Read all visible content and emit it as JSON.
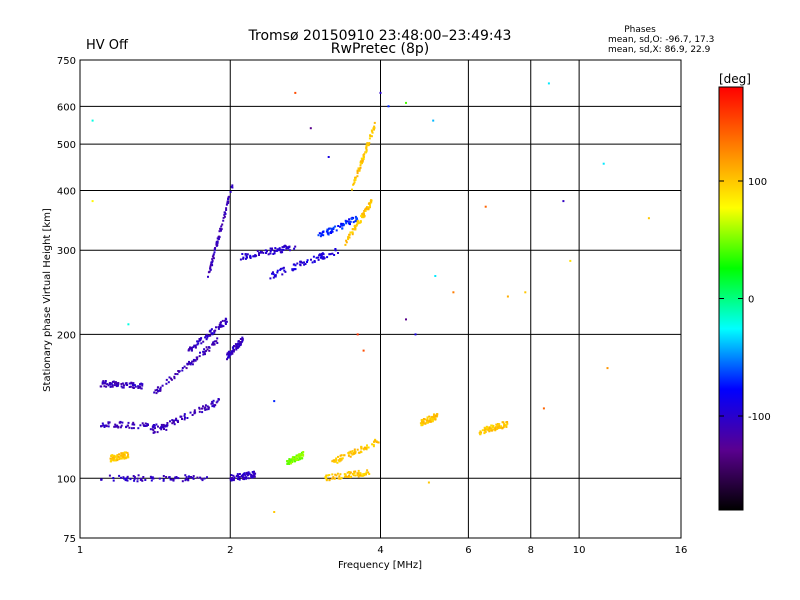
{
  "header": {
    "status": "HV Off",
    "status_color": "#d00000",
    "title": "Tromsø 20150910 23:48:00–23:49:43",
    "subtitle": "RwPretec (8p)"
  },
  "stats": {
    "heading": "Phases",
    "line_o": "mean, sd,O: -96.7, 17.3",
    "line_x": "mean, sd,X: 86.9, 22.9"
  },
  "colorbar": {
    "unit": "[deg]",
    "tick_labels": [
      "100",
      "0",
      "-100"
    ],
    "tick_values": [
      100,
      0,
      -100
    ],
    "range": [
      -180,
      180
    ],
    "colors": [
      "#000000",
      "#5a0090",
      "#0000ff",
      "#00ffff",
      "#00ff00",
      "#ffff00",
      "#ff8000",
      "#ff0000"
    ]
  },
  "chart_data": {
    "type": "scatter",
    "xlabel": "Frequency [MHz]",
    "ylabel": "Stationary phase Virtual Height [km]",
    "xscale": "log2",
    "yscale": "log",
    "xlim": [
      1,
      16
    ],
    "ylim": [
      75,
      750
    ],
    "x_ticks": [
      1,
      2,
      4,
      6,
      8,
      10,
      16
    ],
    "x_tick_labels": [
      "1",
      "2",
      "4",
      "6",
      "8",
      "10",
      "16"
    ],
    "y_ticks": [
      75,
      100,
      200,
      300,
      400,
      500,
      600,
      750
    ],
    "y_tick_labels": [
      "75",
      "100",
      "200",
      "300",
      "400",
      "500",
      "600",
      "750"
    ],
    "grid": true,
    "color_by": "phase [deg]",
    "series": [
      {
        "x": [
          1.1,
          1.8
        ],
        "y": [
          100,
          100
        ],
        "phase": -105
      },
      {
        "x": [
          1.1,
          1.5
        ],
        "y": [
          130,
          128
        ],
        "phase": -108
      },
      {
        "x": [
          1.4,
          1.9
        ],
        "y": [
          125,
          145
        ],
        "phase": -110
      },
      {
        "x": [
          1.1,
          1.35
        ],
        "y": [
          158,
          156
        ],
        "phase": -108
      },
      {
        "x": [
          1.4,
          1.9
        ],
        "y": [
          150,
          195
        ],
        "phase": -110
      },
      {
        "x": [
          1.65,
          1.98
        ],
        "y": [
          185,
          215
        ],
        "phase": -105
      },
      {
        "x": [
          1.8,
          2.02
        ],
        "y": [
          260,
          410
        ],
        "phase": -110
      },
      {
        "x": [
          1.97,
          2.12
        ],
        "y": [
          180,
          195
        ],
        "phase": -105
      },
      {
        "x": [
          2.0,
          2.25
        ],
        "y": [
          100,
          102
        ],
        "phase": -105
      },
      {
        "x": [
          2.1,
          2.7
        ],
        "y": [
          290,
          305
        ],
        "phase": -100
      },
      {
        "x": [
          2.4,
          3.3
        ],
        "y": [
          265,
          300
        ],
        "phase": -95
      },
      {
        "x": [
          3.0,
          3.6
        ],
        "y": [
          320,
          350
        ],
        "phase": -70
      },
      {
        "x": [
          3.4,
          3.85
        ],
        "y": [
          310,
          380
        ],
        "phase": 100
      },
      {
        "x": [
          3.5,
          3.9
        ],
        "y": [
          400,
          550
        ],
        "phase": 100
      },
      {
        "x": [
          3.1,
          3.8
        ],
        "y": [
          100,
          103
        ],
        "phase": 100
      },
      {
        "x": [
          3.2,
          4.0
        ],
        "y": [
          108,
          120
        ],
        "phase": 100
      },
      {
        "x": [
          4.8,
          5.2
        ],
        "y": [
          130,
          135
        ],
        "phase": 100
      },
      {
        "x": [
          6.3,
          7.2
        ],
        "y": [
          125,
          130
        ],
        "phase": 100
      },
      {
        "x": [
          1.15,
          1.25
        ],
        "y": [
          110,
          112
        ],
        "phase": 100
      },
      {
        "x": [
          2.6,
          2.8
        ],
        "y": [
          108,
          112
        ],
        "phase": 50
      }
    ],
    "points": [
      {
        "x": 1.06,
        "y": 560,
        "phase": -20
      },
      {
        "x": 1.06,
        "y": 380,
        "phase": 80
      },
      {
        "x": 1.25,
        "y": 210,
        "phase": -20
      },
      {
        "x": 2.45,
        "y": 145,
        "phase": -70
      },
      {
        "x": 2.7,
        "y": 640,
        "phase": 150
      },
      {
        "x": 2.9,
        "y": 540,
        "phase": -130
      },
      {
        "x": 3.15,
        "y": 470,
        "phase": -90
      },
      {
        "x": 3.6,
        "y": 200,
        "phase": 160
      },
      {
        "x": 3.7,
        "y": 185,
        "phase": 150
      },
      {
        "x": 4.0,
        "y": 640,
        "phase": -100
      },
      {
        "x": 4.15,
        "y": 600,
        "phase": -70
      },
      {
        "x": 4.5,
        "y": 610,
        "phase": 40
      },
      {
        "x": 4.5,
        "y": 215,
        "phase": -130
      },
      {
        "x": 4.7,
        "y": 200,
        "phase": -90
      },
      {
        "x": 5.1,
        "y": 560,
        "phase": -40
      },
      {
        "x": 5.15,
        "y": 265,
        "phase": -30
      },
      {
        "x": 5.6,
        "y": 245,
        "phase": 130
      },
      {
        "x": 6.5,
        "y": 370,
        "phase": 140
      },
      {
        "x": 7.2,
        "y": 240,
        "phase": 110
      },
      {
        "x": 7.8,
        "y": 245,
        "phase": 100
      },
      {
        "x": 8.5,
        "y": 140,
        "phase": 140
      },
      {
        "x": 8.7,
        "y": 670,
        "phase": -30
      },
      {
        "x": 9.3,
        "y": 380,
        "phase": -105
      },
      {
        "x": 9.6,
        "y": 285,
        "phase": 90
      },
      {
        "x": 11.2,
        "y": 455,
        "phase": -30
      },
      {
        "x": 11.4,
        "y": 170,
        "phase": 120
      },
      {
        "x": 13.8,
        "y": 350,
        "phase": 100
      },
      {
        "x": 2.45,
        "y": 85,
        "phase": 100
      },
      {
        "x": 5.0,
        "y": 98,
        "phase": 100
      }
    ]
  }
}
